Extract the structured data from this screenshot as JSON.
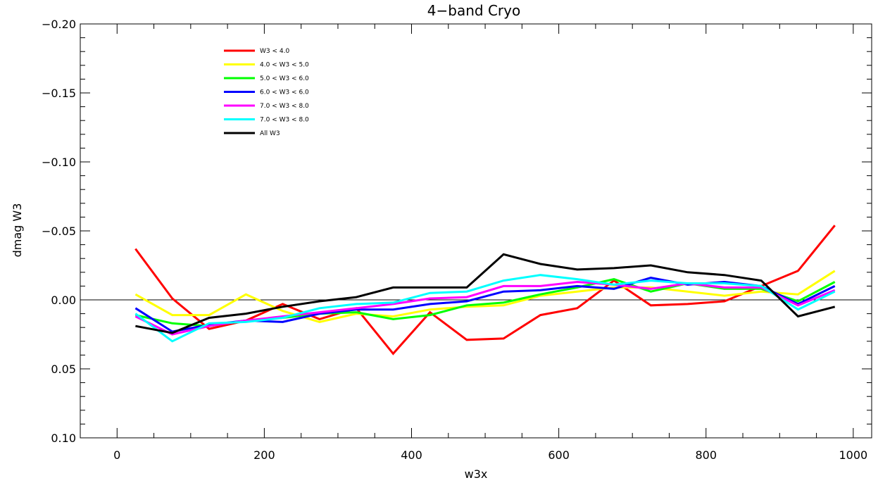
{
  "chart_data": {
    "type": "line",
    "title": "4−band Cryo",
    "xlabel": "w3x",
    "ylabel": "dmag W3",
    "xlim": [
      -50,
      1025
    ],
    "ylim": [
      0.1,
      -0.2
    ],
    "y_inverted": true,
    "x_ticks": [
      "0",
      "200",
      "400",
      "600",
      "800",
      "1000"
    ],
    "x_tick_values": [
      0,
      200,
      400,
      600,
      800,
      1000
    ],
    "y_ticks": [
      "−0.20",
      "−0.15",
      "−0.10",
      "−0.05",
      "0.00",
      "0.05",
      "0.10"
    ],
    "y_tick_values": [
      -0.2,
      -0.15,
      -0.1,
      -0.05,
      0.0,
      0.05,
      0.1
    ],
    "reference_line": 0.0,
    "legend_position": "top-left",
    "x": [
      25,
      75,
      125,
      175,
      225,
      275,
      325,
      375,
      425,
      475,
      525,
      575,
      625,
      675,
      725,
      775,
      825,
      875,
      925,
      975
    ],
    "series": [
      {
        "name": "W3 < 4.0",
        "color": "#ff0000",
        "values": [
          -0.037,
          -0.001,
          0.021,
          0.015,
          0.003,
          0.014,
          0.006,
          0.039,
          0.009,
          0.029,
          0.028,
          0.011,
          0.006,
          -0.014,
          0.004,
          0.003,
          0.001,
          -0.01,
          -0.021,
          -0.054
        ]
      },
      {
        "name": "4.0 < W3 < 5.0",
        "color": "#ffff00",
        "values": [
          -0.004,
          0.011,
          0.011,
          -0.004,
          0.008,
          0.016,
          0.01,
          0.012,
          0.007,
          0.005,
          0.004,
          -0.003,
          -0.006,
          -0.009,
          -0.009,
          -0.006,
          -0.003,
          -0.006,
          -0.004,
          -0.021
        ]
      },
      {
        "name": "5.0 < W3 < 6.0",
        "color": "#00ff00",
        "values": [
          0.011,
          0.017,
          0.019,
          0.015,
          0.013,
          0.01,
          0.009,
          0.014,
          0.011,
          0.004,
          0.002,
          -0.004,
          -0.009,
          -0.015,
          -0.006,
          -0.012,
          -0.008,
          -0.008,
          0.001,
          -0.013
        ]
      },
      {
        "name": "6.0 < W3 < 6.0",
        "color": "#0000ff",
        "values": [
          0.006,
          0.023,
          0.018,
          0.015,
          0.016,
          0.01,
          0.007,
          0.007,
          0.003,
          0.001,
          -0.006,
          -0.007,
          -0.01,
          -0.008,
          -0.016,
          -0.011,
          -0.013,
          -0.01,
          0.003,
          -0.01
        ]
      },
      {
        "name": "7.0 < W3 < 8.0",
        "color": "#ff00ff",
        "values": [
          0.012,
          0.025,
          0.019,
          0.015,
          0.012,
          0.009,
          0.006,
          0.003,
          -0.001,
          -0.002,
          -0.01,
          -0.01,
          -0.013,
          -0.011,
          -0.008,
          -0.012,
          -0.009,
          -0.009,
          0.004,
          -0.007
        ]
      },
      {
        "name": "7.0 < W3 < 8.0",
        "color": "#00ffff",
        "values": [
          0.01,
          0.03,
          0.017,
          0.016,
          0.013,
          0.006,
          0.003,
          0.002,
          -0.005,
          -0.006,
          -0.014,
          -0.018,
          -0.015,
          -0.011,
          -0.014,
          -0.012,
          -0.012,
          -0.01,
          0.007,
          -0.006
        ]
      },
      {
        "name": "All W3",
        "color": "#000000",
        "values": [
          0.019,
          0.024,
          0.013,
          0.01,
          0.005,
          0.001,
          -0.002,
          -0.009,
          -0.009,
          -0.009,
          -0.033,
          -0.026,
          -0.022,
          -0.023,
          -0.025,
          -0.02,
          -0.018,
          -0.014,
          0.012,
          0.005
        ]
      }
    ]
  }
}
